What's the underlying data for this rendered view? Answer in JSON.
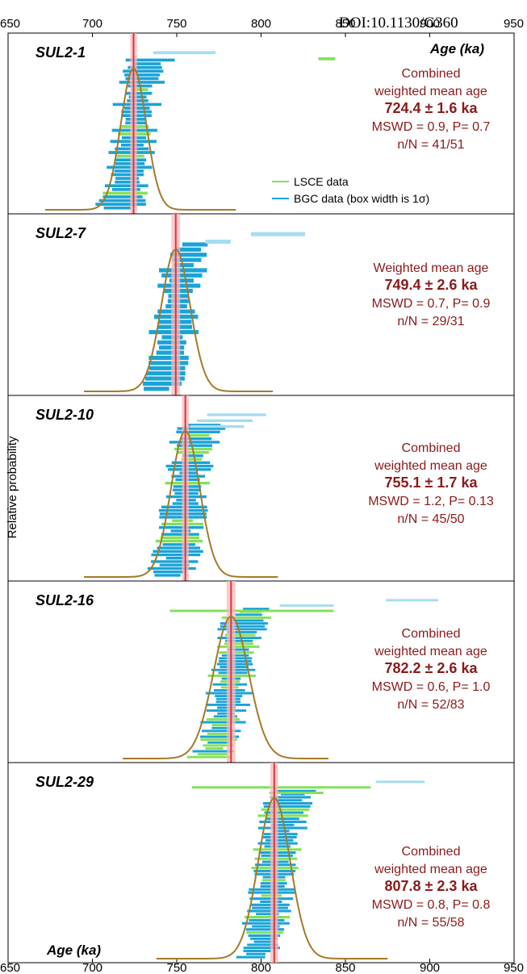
{
  "header_text": "DOI:10.1130/G360",
  "axis": {
    "xmin": 650,
    "xmax": 950,
    "ticks": [
      650,
      700,
      750,
      800,
      850,
      900,
      950
    ],
    "top_label": "Age (ka)",
    "bottom_label": "Age (ka)",
    "ylabel": "Relative probability"
  },
  "legend": {
    "lsce": "LSCE data",
    "bgc": "BGC data (box width is 1σ)"
  },
  "colors": {
    "lsce": "#84e05a",
    "bgc_dark": "#1aa3d8",
    "bgc_light": "#a6dcef",
    "curve": "#a37a28",
    "mean_line": "#e0343a",
    "mean_band": "#f7b9bd",
    "annotation": "#8b1a1a"
  },
  "chart_data": [
    {
      "type": "scatter",
      "sample": "SUL2-1",
      "annotation": [
        "Combined",
        "weighted mean age",
        "724.4 ± 1.6 ka",
        "MSWD = 0.9, P= 0.7",
        "n/N = 41/51"
      ],
      "mean_age": 724.4,
      "mean_err": 1.6,
      "mswd": 0.9,
      "p": 0.7,
      "n": 41,
      "N": 51,
      "curve_sigma": 8,
      "curve_range": [
        672,
        785
      ],
      "n_included": 41,
      "n_total": 51,
      "lsce_fraction": 0.2,
      "outliers": [
        [
          736,
          773,
          "bgc"
        ],
        [
          834,
          844,
          "lsce"
        ]
      ]
    },
    {
      "type": "scatter",
      "sample": "SUL2-7",
      "annotation": [
        "Weighted mean age",
        "749.4 ± 2.6 ka",
        "MSWD = 0.7, P= 0.9",
        "n/N = 29/31"
      ],
      "mean_age": 749.4,
      "mean_err": 2.6,
      "mswd": 0.7,
      "p": 0.9,
      "n": 29,
      "N": 31,
      "curve_sigma": 9,
      "curve_range": [
        695,
        807
      ],
      "n_included": 29,
      "n_total": 31,
      "lsce_fraction": 0,
      "outliers": [
        [
          794,
          826,
          "bgc"
        ],
        [
          767,
          782,
          "bgc"
        ]
      ]
    },
    {
      "type": "scatter",
      "sample": "SUL2-10",
      "annotation": [
        "Combined",
        "weighted mean age",
        "755.1 ± 1.7 ka",
        "MSWD = 1.2, P= 0.13",
        "n/N = 45/50"
      ],
      "mean_age": 755.1,
      "mean_err": 1.7,
      "mswd": 1.2,
      "p": 0.13,
      "n": 45,
      "N": 50,
      "curve_sigma": 9,
      "curve_range": [
        695,
        810
      ],
      "n_included": 45,
      "n_total": 50,
      "lsce_fraction": 0.25,
      "outliers": [
        [
          768,
          803,
          "bgc"
        ],
        [
          762,
          795,
          "bgc"
        ],
        [
          758,
          790,
          "bgc"
        ]
      ]
    },
    {
      "type": "scatter",
      "sample": "SUL2-16",
      "annotation": [
        "Combined",
        "weighted mean age",
        "782.2 ± 2.6 ka",
        "MSWD = 0.6, P= 1.0",
        "n/N = 52/83"
      ],
      "mean_age": 782.2,
      "mean_err": 2.6,
      "mswd": 0.6,
      "p": 1.0,
      "n": 52,
      "N": 83,
      "curve_sigma": 11,
      "curve_range": [
        718,
        840
      ],
      "n_included": 52,
      "n_total": 83,
      "lsce_fraction": 0.3,
      "outliers": [
        [
          874,
          905,
          "bgc"
        ],
        [
          811,
          843,
          "bgc"
        ],
        [
          746,
          843,
          "lsce"
        ]
      ]
    },
    {
      "type": "scatter",
      "sample": "SUL2-29",
      "annotation": [
        "Combined",
        "weighted mean age",
        "807.8 ± 2.3 ka",
        "MSWD = 0.8, P= 0.8",
        "n/N = 55/58"
      ],
      "mean_age": 807.8,
      "mean_err": 2.3,
      "mswd": 0.8,
      "p": 0.8,
      "n": 55,
      "N": 58,
      "curve_sigma": 10,
      "curve_range": [
        738,
        875
      ],
      "n_included": 55,
      "n_total": 58,
      "lsce_fraction": 0.25,
      "outliers": [
        [
          868,
          897,
          "bgc"
        ],
        [
          759,
          865,
          "lsce"
        ],
        [
          805,
          837,
          "lsce"
        ]
      ]
    }
  ]
}
